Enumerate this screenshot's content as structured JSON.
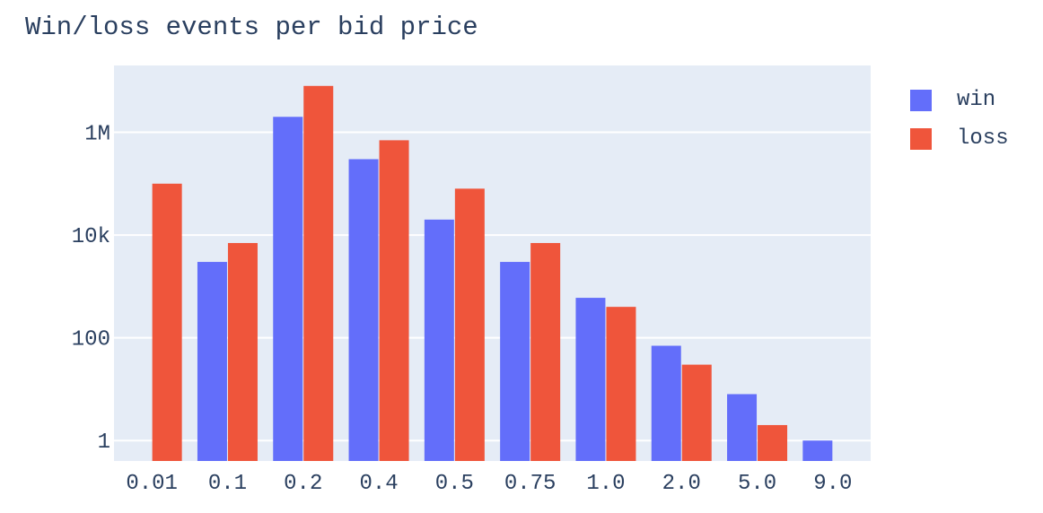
{
  "chart_data": {
    "type": "bar",
    "title": "Win/loss events per bid price",
    "categories": [
      "0.01",
      "0.1",
      "0.2",
      "0.4",
      "0.5",
      "0.75",
      "1.0",
      "2.0",
      "5.0",
      "9.0"
    ],
    "series": [
      {
        "name": "win",
        "color": "#636efa",
        "values": [
          null,
          3000,
          2000000,
          300000,
          20000,
          3000,
          600,
          70,
          8,
          1
        ]
      },
      {
        "name": "loss",
        "color": "#ef553b",
        "values": [
          100000,
          7000,
          8000000,
          700000,
          80000,
          7000,
          400,
          30,
          2,
          null
        ]
      }
    ],
    "yscale": "log",
    "yticks": [
      1,
      100,
      10000,
      1000000
    ],
    "ytick_labels": [
      "1",
      "100",
      "10k",
      "1M"
    ],
    "ylim": [
      0.4,
      20000000
    ],
    "xlabel": "",
    "ylabel": "",
    "grid": true,
    "legend_position": "top-right",
    "background": "#e5ecf6"
  }
}
